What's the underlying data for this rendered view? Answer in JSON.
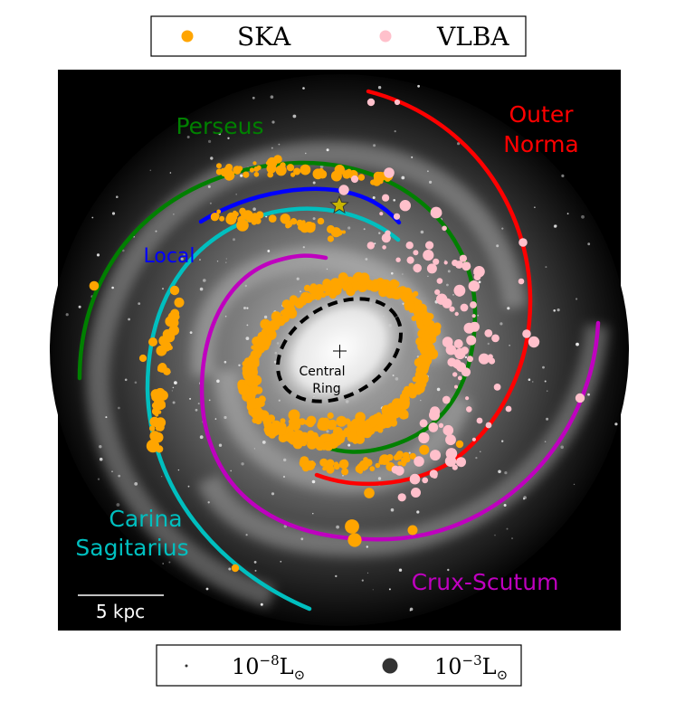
{
  "chart_data": {
    "type": "scatter",
    "legend_top": {
      "placement": "top-center",
      "entries": [
        {
          "label": "SKA",
          "color": "#FFA500"
        },
        {
          "label": "VLBA",
          "color": "#FFC0CB"
        }
      ]
    },
    "legend_bottom": {
      "placement": "bottom-center",
      "entries": [
        {
          "label_base": "10",
          "label_exp": "−8",
          "label_unit": "L",
          "label_sub": "⊙"
        },
        {
          "label_base": "10",
          "label_exp": "−3",
          "label_unit": "L",
          "label_sub": "⊙"
        }
      ]
    },
    "arm_labels": [
      {
        "name": "perseus",
        "lines": [
          "Perseus"
        ],
        "color": "#008000"
      },
      {
        "name": "outer-norma",
        "lines": [
          "Outer",
          "Norma"
        ],
        "color": "#FF0000"
      },
      {
        "name": "local",
        "lines": [
          "Local"
        ],
        "color": "#0000FF"
      },
      {
        "name": "carina-sagitarius",
        "lines": [
          "Carina",
          "Sagitarius"
        ],
        "color": "#00BFBF"
      },
      {
        "name": "crux-scutum",
        "lines": [
          "Crux-Scutum"
        ],
        "color": "#BF00BF"
      }
    ],
    "central_ring_label": [
      "Central",
      "Ring"
    ],
    "scale_bar_label": "5 kpc",
    "grid": false
  }
}
